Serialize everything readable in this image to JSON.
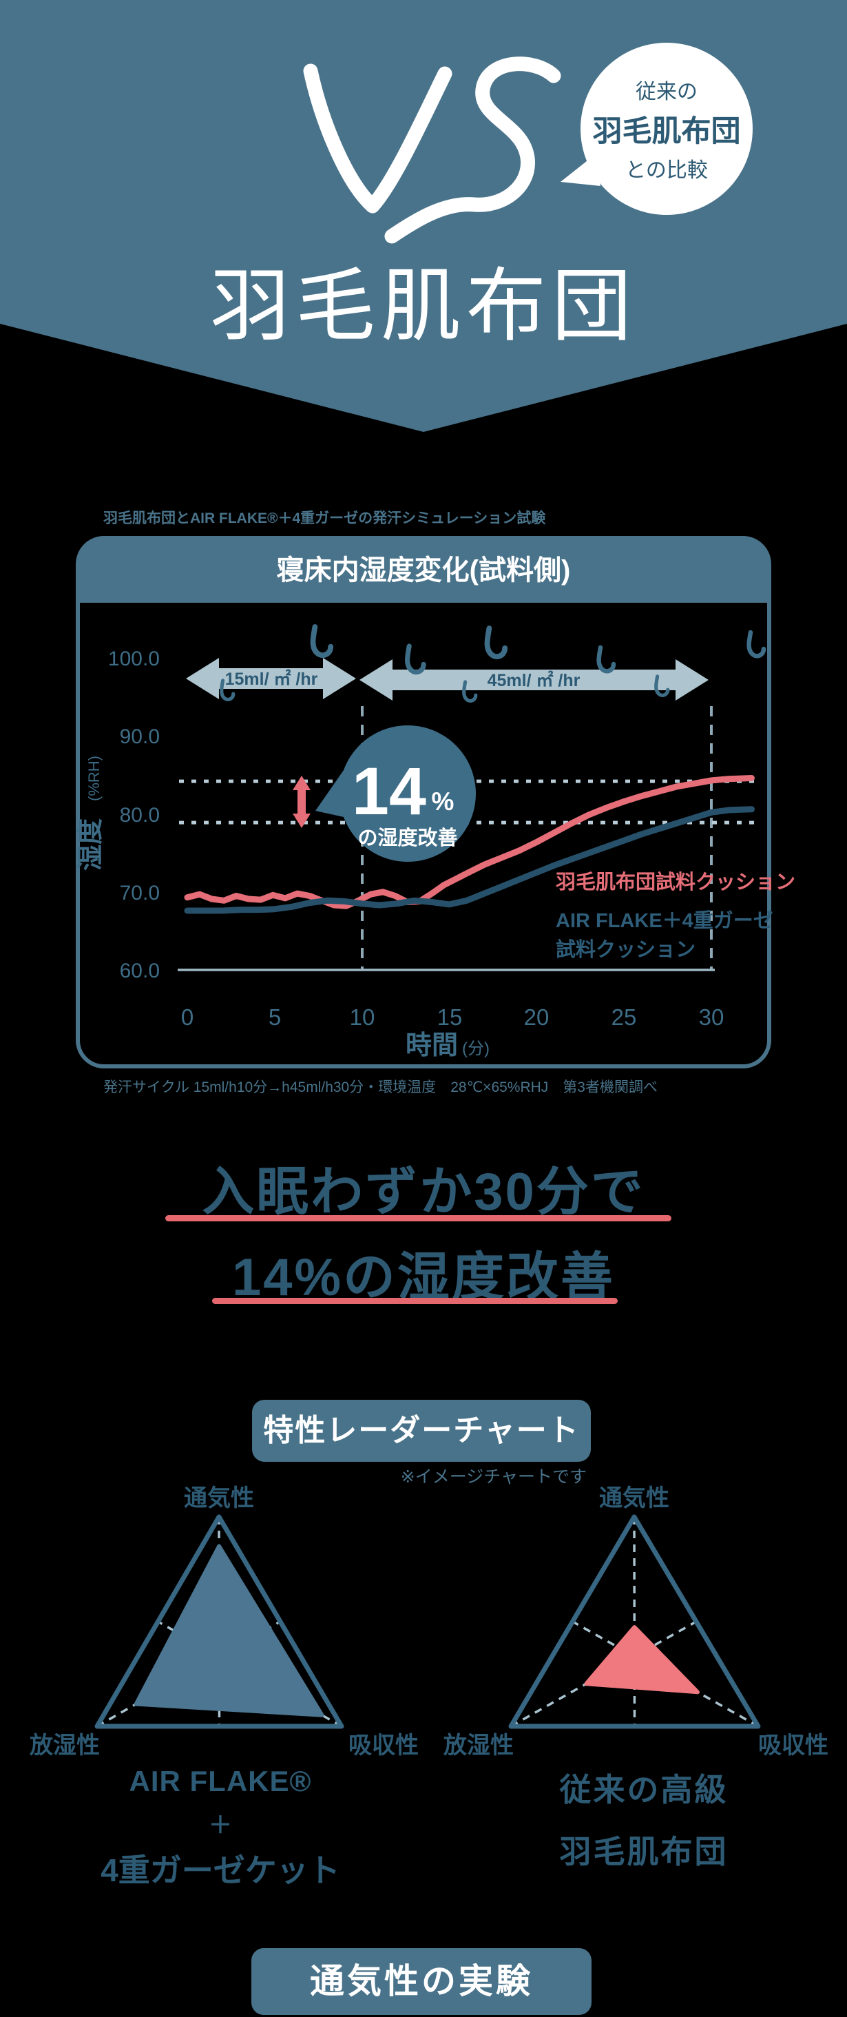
{
  "colors": {
    "page_bg": "#000000",
    "header_bg": "#49738a",
    "dark_blue_text": "#2d5a74",
    "statement_text": "#2e5973",
    "red_accent": "#e56e78",
    "underline_red": "#e5686e",
    "arrow_band": "#aec5cf",
    "dashed_light": "#b8cdd7",
    "badge_blue": "#3e6d87",
    "tick_text": "#3e6d87",
    "radar_outline": "#386783",
    "radar_left_fill": "#4c7691",
    "radar_right_fill": "#f0797f"
  },
  "header": {
    "vs": "VS",
    "bubble": {
      "line1": "従来の",
      "line2": "羽毛肌布団",
      "line3": "との比較"
    },
    "title": "羽毛肌布団"
  },
  "experiment": {
    "label": "羽毛肌布団とAIR FLAKE®＋4重ガーゼの発汗シミュレーション試験",
    "footnote": "発汗サイクル 15ml/h10分→h45ml/h30分・環境温度　28℃×65%RHJ　第3者機関調べ"
  },
  "chart_data": [
    {
      "type": "line",
      "title": "寝床内湿度変化(試料側)",
      "xlabel": "時間",
      "xlabel_unit": "(分)",
      "ylabel": "湿度",
      "ylabel_unit": "(%RH)",
      "xlim": [
        0,
        32.5
      ],
      "ylim": [
        60,
        100
      ],
      "yticks": [
        "100.0",
        "90.0",
        "80.0",
        "70.0",
        "60.0"
      ],
      "xticks": [
        "0",
        "5",
        "10",
        "15",
        "20",
        "25",
        "30"
      ],
      "grid": false,
      "legend_position": "inside-right",
      "annotations": {
        "phase1_label": "15ml/ ㎡ /hr",
        "phase2_label": "45ml/ ㎡ /hr",
        "phase_boundary_min": 10,
        "phase_end_min": 30,
        "dashed_levels": [
          84.2,
          78.9
        ],
        "badge_value": "14",
        "badge_percent": "%",
        "badge_caption": "の湿度改善"
      },
      "series": [
        {
          "name": "羽毛肌布団試料クッション",
          "color": "#e56e78",
          "x": [
            0,
            0.7,
            1.4,
            2.1,
            2.8,
            3.5,
            4.2,
            4.9,
            5.6,
            6.3,
            7,
            7.7,
            8.4,
            9.1,
            9.8,
            10.5,
            11.2,
            11.9,
            12.6,
            13.3,
            14,
            14.7,
            15.4,
            16.1,
            17,
            18,
            19,
            20,
            21,
            22,
            23,
            24,
            25,
            26,
            27,
            28,
            29,
            30,
            31,
            32.3
          ],
          "y": [
            69.3,
            69.7,
            69.1,
            68.9,
            69.5,
            69.1,
            69.0,
            69.6,
            69.2,
            69.8,
            69.5,
            68.9,
            68.3,
            68.2,
            68.9,
            69.7,
            70.0,
            69.5,
            68.7,
            68.8,
            69.8,
            70.9,
            71.7,
            72.5,
            73.5,
            74.4,
            75.3,
            76.4,
            77.6,
            78.8,
            79.9,
            80.8,
            81.6,
            82.3,
            82.9,
            83.5,
            83.9,
            84.3,
            84.5,
            84.6
          ]
        },
        {
          "name_line1": "AIR FLAKE＋4重ガーゼ",
          "name_line2": "試料クッション",
          "color": "#27516b",
          "legend_color": "#2e5d79",
          "x": [
            0,
            1,
            2,
            3,
            4,
            5,
            6,
            7,
            8,
            9,
            10,
            11,
            12,
            13,
            14,
            15,
            16,
            17,
            18,
            19,
            20,
            21,
            22,
            23,
            24,
            25,
            26,
            27,
            28,
            29,
            30,
            31,
            32.3
          ],
          "y": [
            67.6,
            67.6,
            67.6,
            67.7,
            67.7,
            67.8,
            68.1,
            68.6,
            68.9,
            68.8,
            68.5,
            68.3,
            68.5,
            68.9,
            68.7,
            68.4,
            68.9,
            69.8,
            70.7,
            71.6,
            72.5,
            73.4,
            74.2,
            75.0,
            75.8,
            76.6,
            77.4,
            78.1,
            78.8,
            79.5,
            80.2,
            80.5,
            80.6
          ]
        }
      ]
    },
    {
      "type": "radar",
      "name": "AIR FLAKE®＋4重ガーゼケット",
      "axes": [
        "通気性",
        "放湿性",
        "吸収性"
      ],
      "values": [
        0.79,
        0.68,
        0.84
      ],
      "max": 1,
      "color": "#4c7691"
    },
    {
      "type": "radar",
      "name": "従来の高級羽毛肌布団",
      "axes": [
        "通気性",
        "放湿性",
        "吸収性"
      ],
      "values": [
        0.21,
        0.39,
        0.51
      ],
      "max": 1,
      "color": "#f0797f"
    }
  ],
  "statement": {
    "line1": "入眠わずか30分で",
    "line2": "14%の湿度改善"
  },
  "radar_section": {
    "heading": "特性レーダーチャート",
    "note": "※イメージチャートです",
    "left_caption": {
      "line1": "AIR FLAKE®",
      "line2": "＋",
      "line3": "4重ガーゼケット"
    },
    "right_caption": {
      "line1": "従来の高級",
      "line2": "羽毛肌布団"
    }
  },
  "bottom": {
    "heading": "通気性の実験"
  }
}
